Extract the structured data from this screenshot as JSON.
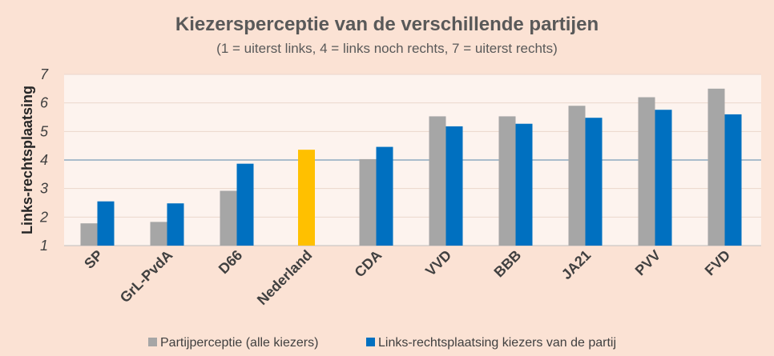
{
  "chart_data": {
    "type": "bar",
    "title": "Kiezersperceptie van de verschillende partijen",
    "subtitle": "(1 = uiterst links, 4 = links noch rechts, 7 = uiterst rechts)",
    "ylabel": "Links-rechtsplaatsing",
    "xlabel": "",
    "ylim": [
      1,
      7
    ],
    "yticks": [
      "1",
      "2",
      "3",
      "4",
      "5",
      "6",
      "7"
    ],
    "reference_line": 4,
    "legend_position": "bottom",
    "categories": [
      "SP",
      "GrL-PvdA",
      "D66",
      "Nederland",
      "CDA",
      "VVD",
      "BBB",
      "JA21",
      "PVV",
      "FVD"
    ],
    "series": [
      {
        "name": "Partijperceptie (alle kiezers)",
        "color": "#a6a6a6",
        "values": [
          1.78,
          1.83,
          2.92,
          null,
          4.03,
          5.53,
          5.53,
          5.9,
          6.2,
          6.5
        ]
      },
      {
        "name": "Links-rechtsplaatsing kiezers van de partij",
        "color": "#0070c0",
        "values": [
          2.55,
          2.48,
          3.87,
          4.36,
          4.46,
          5.18,
          5.27,
          5.48,
          5.76,
          5.6
        ]
      }
    ],
    "highlight": {
      "category": "Nederland",
      "color": "#ffc000"
    }
  }
}
